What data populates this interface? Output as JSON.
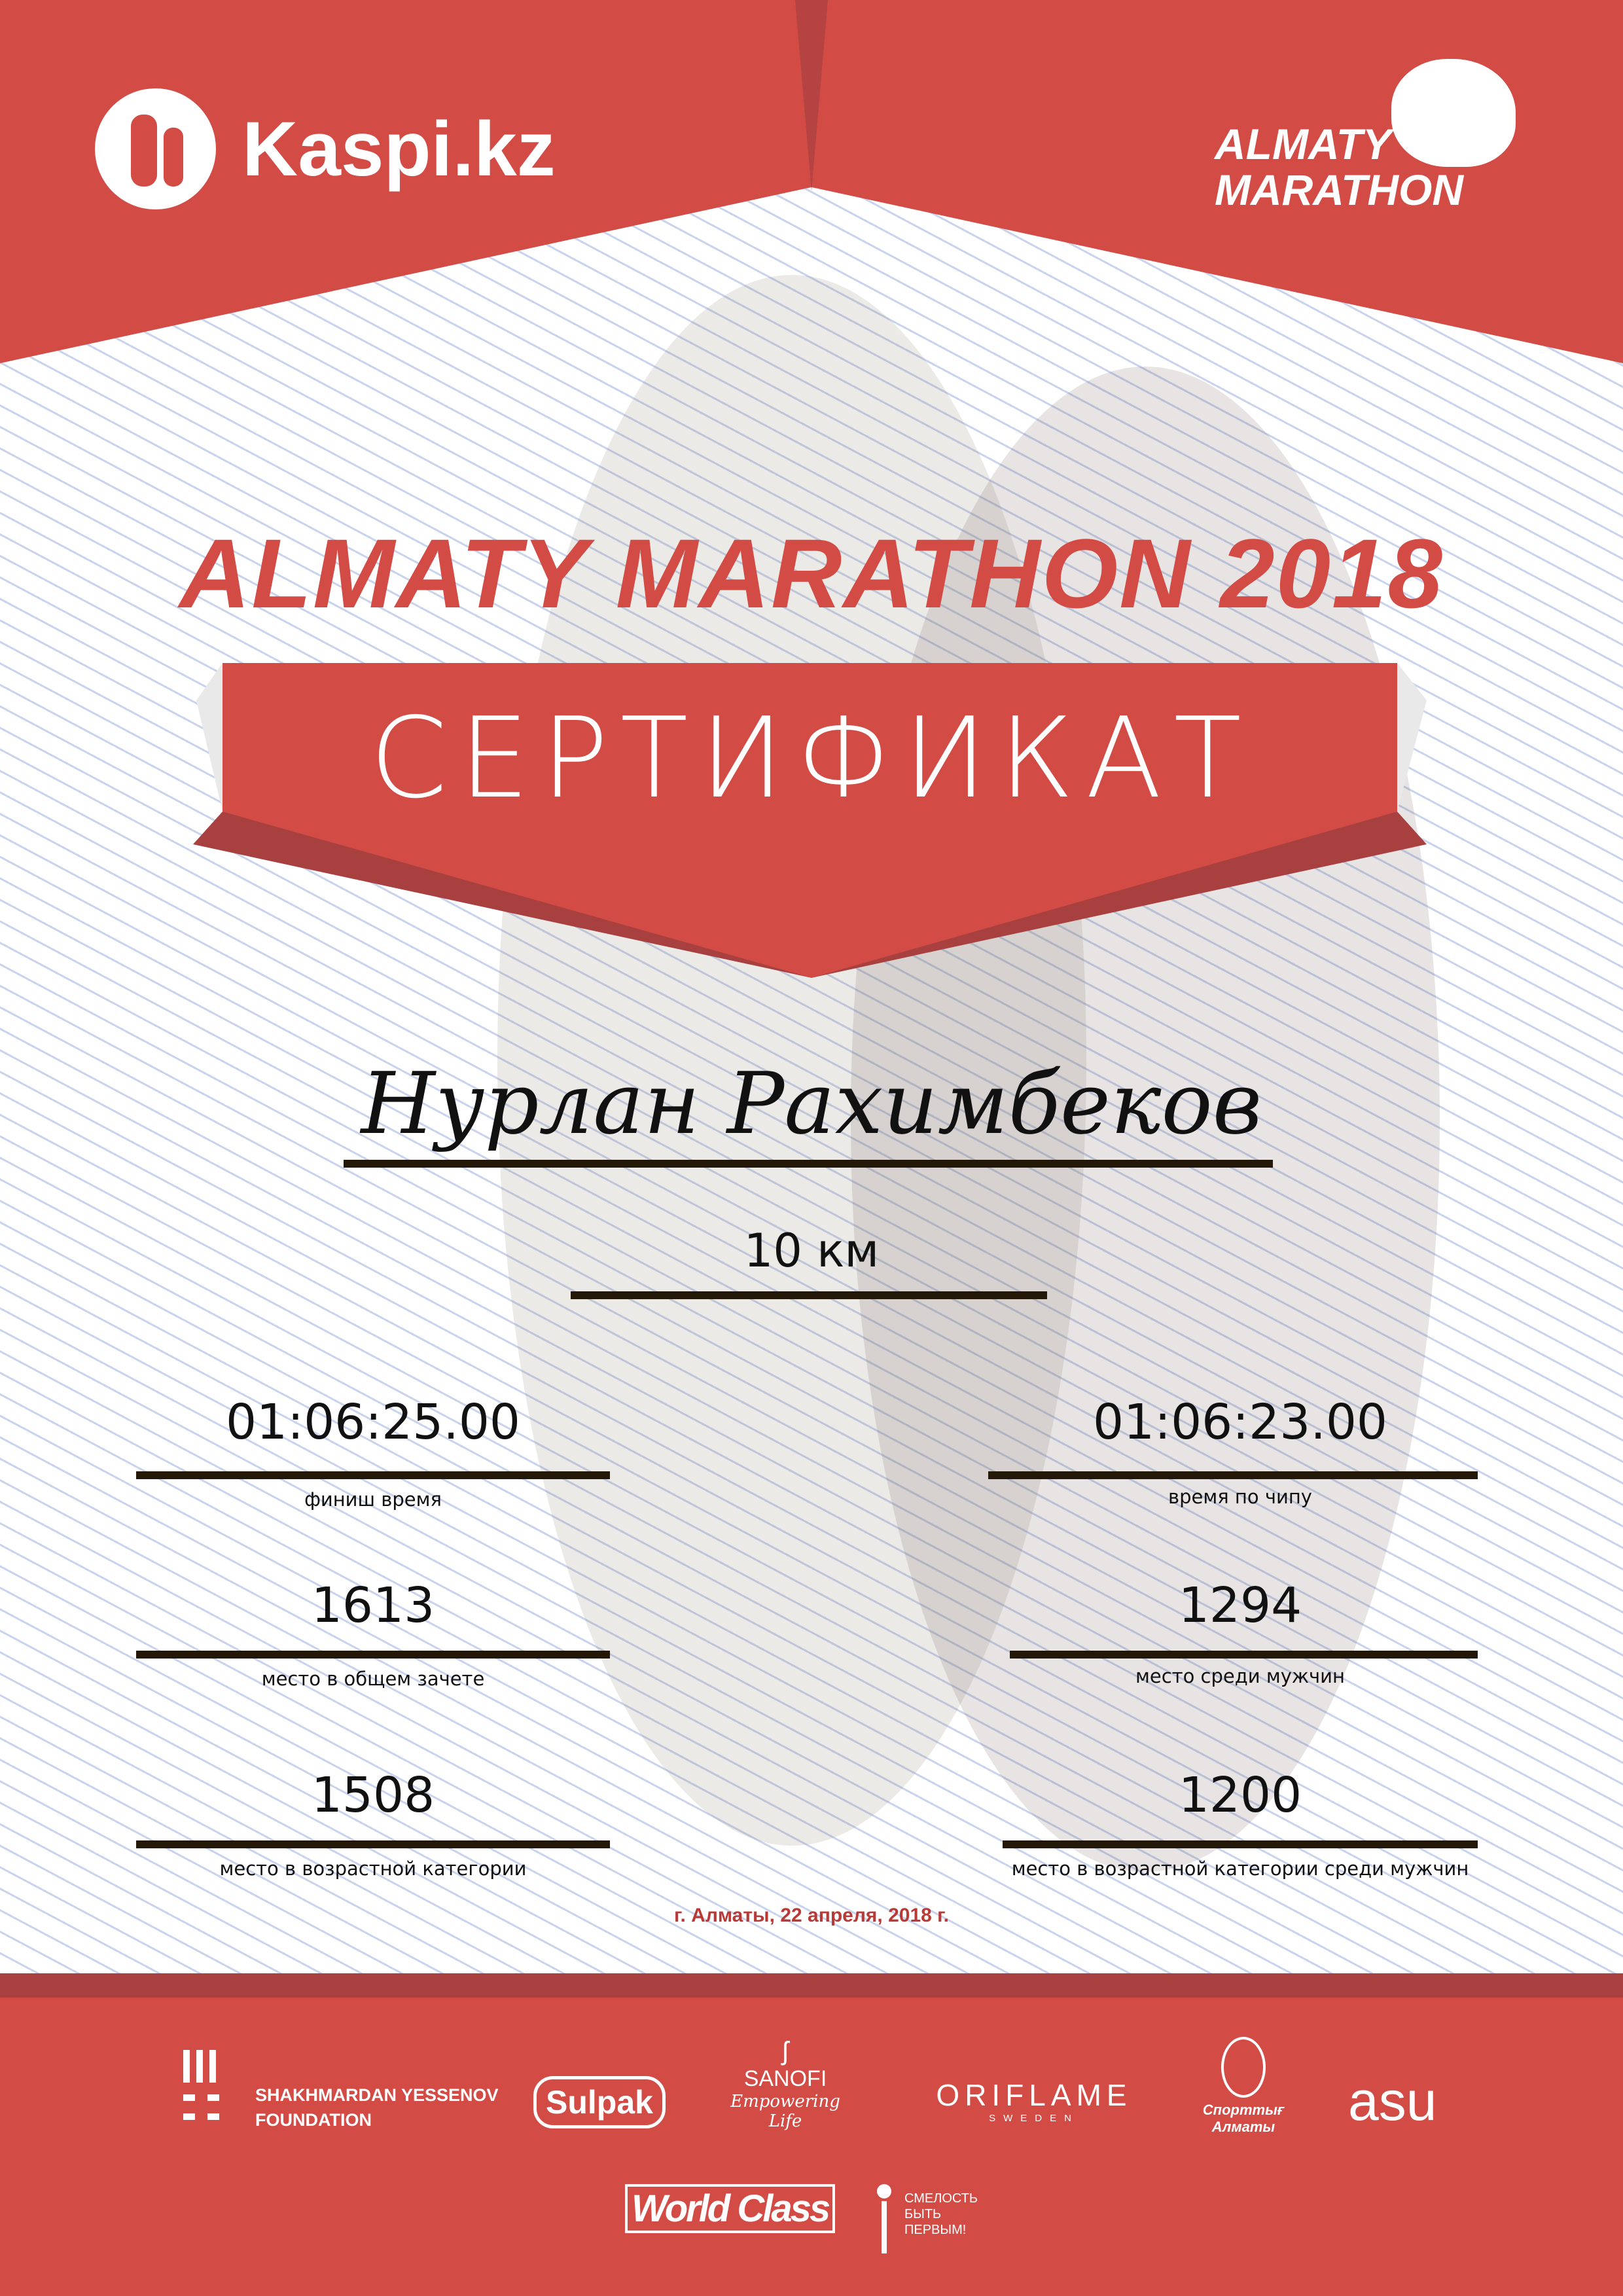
{
  "header": {
    "sponsor_logo_text": "Kaspi.kz",
    "event_logo_text": [
      "ALMATY",
      "MARATHON"
    ]
  },
  "title": "ALMATY MARATHON 2018",
  "certificate_label": "СЕРТИФИКАТ",
  "participant_name": "Нурлан Рахимбеков",
  "distance": "10 км",
  "results": {
    "finish_time": {
      "value": "01:06:25.00",
      "label": "финиш время"
    },
    "chip_time": {
      "value": "01:06:23.00",
      "label": "время по чипу"
    },
    "overall_place": {
      "value": "1613",
      "label": "место в общем зачете"
    },
    "men_place": {
      "value": "1294",
      "label": "место среди мужчин"
    },
    "age_place": {
      "value": "1508",
      "label": "место в возрастной категории"
    },
    "age_men_place": {
      "value": "1200",
      "label": "место в возрастной категории среди мужчин"
    }
  },
  "date": "г. Алматы, 22 апреля, 2018 г.",
  "partners": {
    "yessenov": [
      "SHAKHMARDAN YESSENOV",
      "FOUNDATION"
    ],
    "sulpak": "Sulpak",
    "sanofi": [
      "SANOFI",
      "Empowering Life"
    ],
    "oriflame": [
      "ORIFLAME",
      "SWEDEN"
    ],
    "sport_almaty": [
      "Спорттығ",
      "Алматы"
    ],
    "asu": "asu",
    "worldclass": "World Class",
    "fund": [
      "СМЕЛОСТЬ",
      "БЫТЬ",
      "ПЕРВЫМ!"
    ]
  },
  "colors": {
    "brand_red": "#d24b45",
    "dark_red": "#a84040",
    "date_red": "#b83a36"
  }
}
